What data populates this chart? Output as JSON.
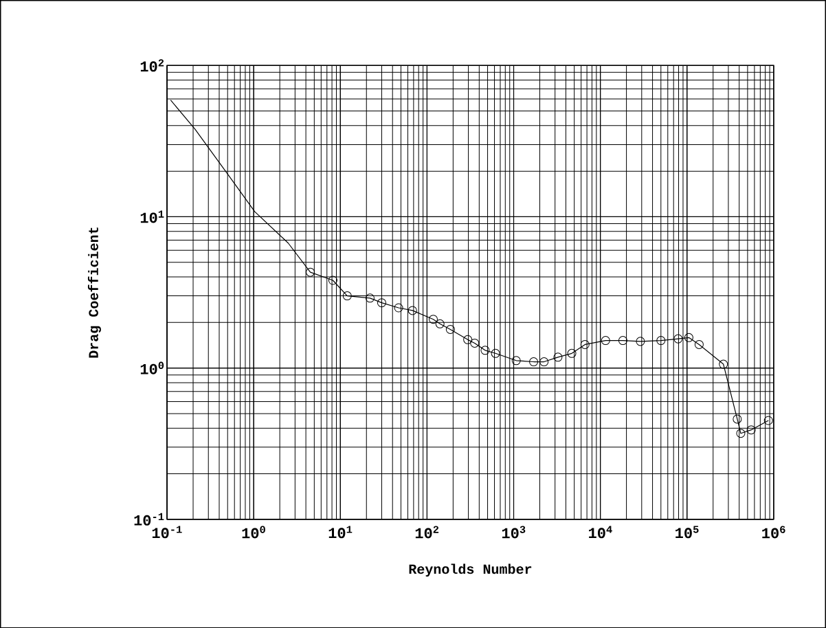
{
  "chart_data": {
    "type": "line",
    "xlabel": "Reynolds Number",
    "ylabel": "Drag Coefficient",
    "log": "xy",
    "grid": true,
    "xlim": [
      0.1,
      1000000
    ],
    "ylim": [
      0.1,
      100
    ],
    "xticks": [
      {
        "value": 0.1,
        "label": "10$^{-1}$"
      },
      {
        "value": 1,
        "label": "10$^{0}$"
      },
      {
        "value": 10,
        "label": "10$^{1}$"
      },
      {
        "value": 100,
        "label": "10$^{2}$"
      },
      {
        "value": 1000,
        "label": "10$^{3}$"
      },
      {
        "value": 10000,
        "label": "10$^{4}$"
      },
      {
        "value": 100000,
        "label": "10$^{5}$"
      },
      {
        "value": 1000000,
        "label": "10$^{6}$"
      }
    ],
    "yticks": [
      {
        "value": 0.1,
        "label": "10$^{-1}$"
      },
      {
        "value": 1,
        "label": "10$^{0}$"
      },
      {
        "value": 10,
        "label": "10$^{1}$"
      },
      {
        "value": 100,
        "label": "10$^{2}$"
      }
    ],
    "series": [
      {
        "marker": "none",
        "line_style": "solid",
        "color": "#000000",
        "x": [
          0.11,
          0.21,
          0.42,
          1.03,
          2.5,
          4.5,
          8.2,
          12,
          22,
          30,
          47,
          68,
          118,
          141,
          186,
          295,
          355,
          468,
          617,
          1070,
          1700,
          2240,
          3240,
          4680,
          6650,
          11500,
          18200,
          29000,
          50000,
          79000,
          105000,
          138000,
          263000,
          380000,
          417000,
          550000,
          870000
        ],
        "values": [
          59,
          38,
          22,
          10.8,
          6.7,
          4.3,
          3.8,
          3.0,
          2.9,
          2.7,
          2.5,
          2.4,
          2.1,
          1.96,
          1.8,
          1.54,
          1.46,
          1.31,
          1.25,
          1.12,
          1.1,
          1.1,
          1.18,
          1.25,
          1.43,
          1.52,
          1.52,
          1.5,
          1.52,
          1.56,
          1.59,
          1.43,
          1.06,
          0.46,
          0.37,
          0.39,
          0.45
        ]
      },
      {
        "type": "scatter",
        "marker": "circle",
        "color": "#000000",
        "x": [
          4.5,
          8.2,
          12,
          22,
          30,
          47,
          68,
          118,
          141,
          186,
          295,
          355,
          468,
          617,
          1070,
          1700,
          2240,
          3240,
          4680,
          6650,
          11500,
          18200,
          29000,
          50000,
          79000,
          105000,
          138000,
          263000,
          380000,
          417000,
          550000,
          870000
        ],
        "values": [
          4.3,
          3.8,
          3.0,
          2.9,
          2.7,
          2.5,
          2.4,
          2.1,
          1.96,
          1.8,
          1.54,
          1.46,
          1.31,
          1.25,
          1.12,
          1.1,
          1.1,
          1.18,
          1.25,
          1.43,
          1.52,
          1.52,
          1.5,
          1.52,
          1.56,
          1.59,
          1.43,
          1.06,
          0.46,
          0.37,
          0.39,
          0.45
        ]
      }
    ]
  }
}
